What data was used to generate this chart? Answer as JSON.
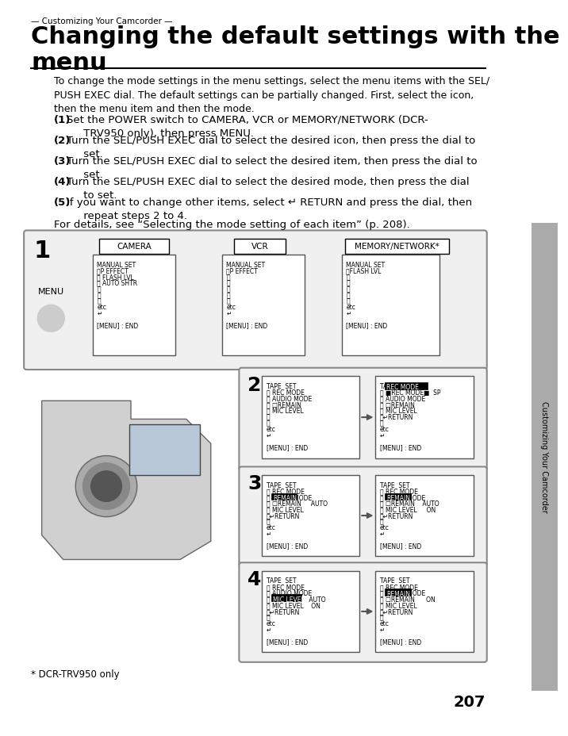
{
  "page_number": "207",
  "top_label": "— Customizing Your Camcorder —",
  "title": "Changing the default settings with the\nmenu",
  "intro_text": "To change the mode settings in the menu settings, select the menu items with the SEL/\nPUSH EXEC dial. The default settings can be partially changed. First, select the icon,\nthen the menu item and then the mode.",
  "steps": [
    "(1) Set the POWER switch to CAMERA, VCR or MEMORY/NETWORK (DCR-\nTRV950 only), then press MENU.",
    "(2) Turn the SEL/PUSH EXEC dial to select the desired icon, then press the dial to\nset.",
    "(3) Turn the SEL/PUSH EXEC dial to select the desired item, then press the dial to\nset.",
    "(4) Turn the SEL/PUSH EXEC dial to select the desired mode, then press the dial\nto set.",
    "(5) If you want to change other items, select ↵ RETURN and press the dial, then\nrepeat steps 2 to 4."
  ],
  "for_details": "For details, see “Selecting the mode setting of each item” (p. 208).",
  "footnote": "* DCR-TRV950 only",
  "side_label": "Customizing Your Camcorder",
  "bg_color": "#ffffff",
  "box_bg": "#f5f5f5",
  "box_border": "#888888",
  "menu_box1_lines": [
    "MANUAL SET",
    "␉P EFFECT",
    "␉ FLASH LVL",
    "␉ AUTO SHTR",
    "␉",
    "␉",
    "␉",
    "etc",
    "↵",
    "",
    "[MENU] : END"
  ],
  "menu_box2_lines": [
    "MANUAL SET",
    "␉P EFFECT",
    "␉",
    "␉",
    "␉",
    "␉",
    "␉",
    "etc",
    "↵",
    "",
    "[MENU] : END"
  ],
  "menu_box3_lines": [
    "MANUAL SET",
    "␉FLASH LVL",
    "␉",
    "␉",
    "␉",
    "␉",
    "␉",
    "etc",
    "↵",
    "",
    "[MENU] : END"
  ]
}
